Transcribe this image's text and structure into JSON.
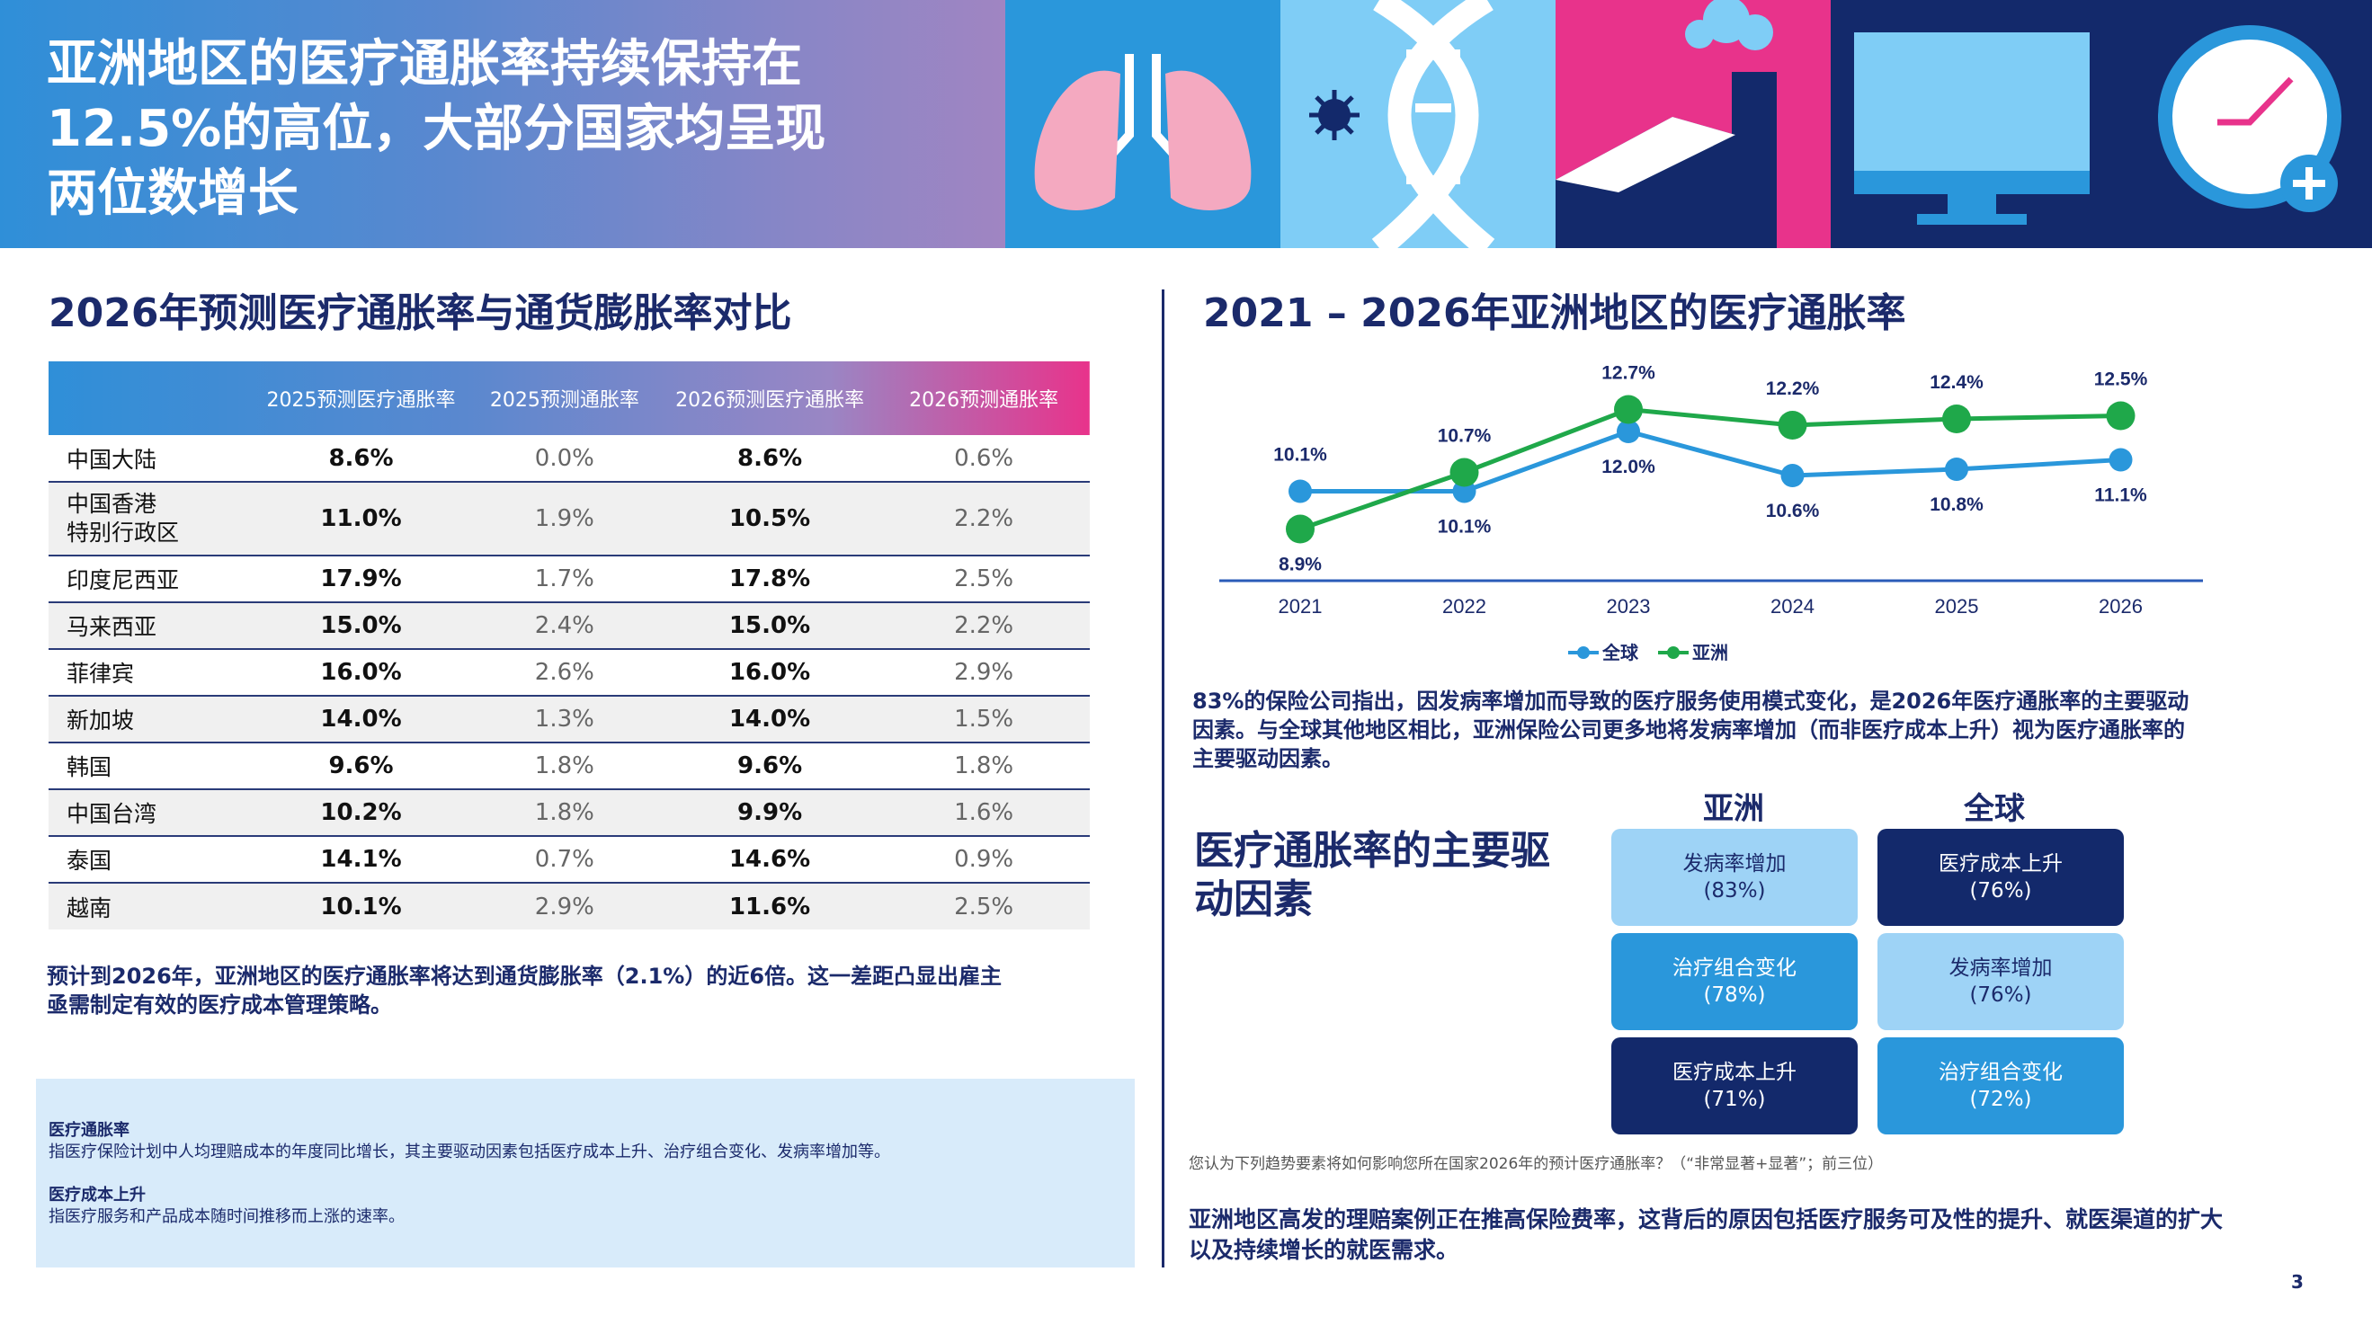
{
  "banner": {
    "title_line1": "亚洲地区的医疗通胀率持续保持在",
    "title_line2": "12.5%的高位，大部分国家均呈现",
    "title_line3": "两位数增长"
  },
  "table_section": {
    "title": "2026年预测医疗通胀率与通货膨胀率对比",
    "headers": [
      "",
      "2025预测医疗通胀率",
      "2025预测通胀率",
      "2026预测医疗通胀率",
      "2026预测通胀率"
    ],
    "rows": [
      {
        "name": "中国大陆",
        "m2025": "8.6%",
        "i2025": "0.0%",
        "m2026": "8.6%",
        "i2026": "0.6%"
      },
      {
        "name_line1": "中国香港",
        "name_line2": "特别行政区",
        "m2025": "11.0%",
        "i2025": "1.9%",
        "m2026": "10.5%",
        "i2026": "2.2%"
      },
      {
        "name": "印度尼西亚",
        "m2025": "17.9%",
        "i2025": "1.7%",
        "m2026": "17.8%",
        "i2026": "2.5%"
      },
      {
        "name": "马来西亚",
        "m2025": "15.0%",
        "i2025": "2.4%",
        "m2026": "15.0%",
        "i2026": "2.2%"
      },
      {
        "name": "菲律宾",
        "m2025": "16.0%",
        "i2025": "2.6%",
        "m2026": "16.0%",
        "i2026": "2.9%"
      },
      {
        "name": "新加坡",
        "m2025": "14.0%",
        "i2025": "1.3%",
        "m2026": "14.0%",
        "i2026": "1.5%"
      },
      {
        "name": "韩国",
        "m2025": "9.6%",
        "i2025": "1.8%",
        "m2026": "9.6%",
        "i2026": "1.8%"
      },
      {
        "name": "中国台湾",
        "m2025": "10.2%",
        "i2025": "1.8%",
        "m2026": "9.9%",
        "i2026": "1.6%"
      },
      {
        "name": "泰国",
        "m2025": "14.1%",
        "i2025": "0.7%",
        "m2026": "14.6%",
        "i2026": "0.9%"
      },
      {
        "name": "越南",
        "m2025": "10.1%",
        "i2025": "2.9%",
        "m2026": "11.6%",
        "i2026": "2.5%"
      }
    ],
    "summary_line1": "预计到2026年，亚洲地区的医疗通胀率将达到通货膨胀率（2.1%）的近6倍。这一差距凸显出雇主",
    "summary_line2": "亟需制定有效的医疗成本管理策略。"
  },
  "definitions": {
    "term1": "医疗通胀率",
    "def1": "指医疗保险计划中人均理赔成本的年度同比增长，其主要驱动因素包括医疗成本上升、治疗组合变化、发病率增加等。",
    "term2": "医疗成本上升",
    "def2": "指医疗服务和产品成本随时间推移而上涨的速率。"
  },
  "chart_section": {
    "title": "2021 – 2026年亚洲地区的医疗通胀率"
  },
  "chart_data": {
    "type": "line",
    "title": "2021 – 2026年亚洲地区的医疗通胀率",
    "x": [
      "2021",
      "2022",
      "2023",
      "2024",
      "2025",
      "2026"
    ],
    "series": [
      {
        "name": "全球",
        "color": "#2a97db",
        "values": [
          10.1,
          10.1,
          12.0,
          10.6,
          10.8,
          11.1
        ],
        "labels": [
          "10.1%",
          "10.1%",
          "12.0%",
          "10.6%",
          "10.8%",
          "11.1%"
        ]
      },
      {
        "name": "亚洲",
        "color": "#1fa84a",
        "values": [
          8.9,
          10.7,
          12.7,
          12.2,
          12.4,
          12.5
        ],
        "labels": [
          "8.9%",
          "10.7%",
          "12.7%",
          "12.2%",
          "12.4%",
          "12.5%"
        ]
      }
    ],
    "ylim": [
      6,
      14
    ],
    "legend": [
      "全球",
      "亚洲"
    ]
  },
  "drivers": {
    "intro_line1": "83%的保险公司指出，因发病率增加而导致的医疗服务使用模式变化，是2026年医疗通胀率的主要驱动",
    "intro_line2": "因素。与全球其他地区相比，亚洲保险公司更多地将发病率增加（而非医疗成本上升）视为医疗通胀率的",
    "intro_line3": "主要驱动因素。",
    "heading_line1": "医疗通胀率的主要驱",
    "heading_line2": "动因素",
    "col_asia": "亚洲",
    "col_global": "全球",
    "asia": [
      {
        "label": "发病率增加",
        "value": "(83%)"
      },
      {
        "label": "治疗组合变化",
        "value": "(78%)"
      },
      {
        "label": "医疗成本上升",
        "value": "(71%)"
      }
    ],
    "global": [
      {
        "label": "医疗成本上升",
        "value": "(76%)"
      },
      {
        "label": "发病率增加",
        "value": "(76%)"
      },
      {
        "label": "治疗组合变化",
        "value": "(72%)"
      }
    ],
    "footnote": "您认为下列趋势要素将如何影响您所在国家2026年的预计医疗通胀率？（“非常显著+显著”；前三位）",
    "closing_line1": "亚洲地区高发的理赔案例正在推高保险费率，这背后的原因包括医疗服务可及性的提升、就医渠道的扩大",
    "closing_line2": "以及持续增长的就医需求。"
  },
  "page_number": "3"
}
